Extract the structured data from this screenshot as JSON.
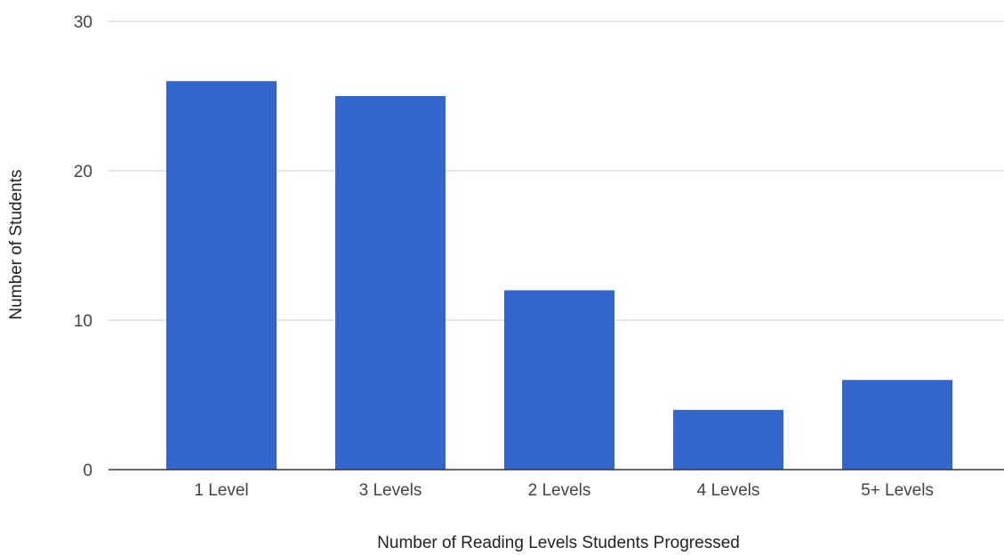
{
  "chart_data": {
    "type": "bar",
    "categories": [
      "1 Level",
      "3 Levels",
      "2 Levels",
      "4 Levels",
      "5+ Levels"
    ],
    "values": [
      26,
      25,
      12,
      4,
      6
    ],
    "title": "",
    "xlabel": "Number of Reading Levels Students Progressed",
    "ylabel": "Number of Students",
    "ylim": [
      0,
      30
    ],
    "yticks": [
      "0",
      "10",
      "20",
      "30"
    ],
    "grid": true,
    "legend": "none",
    "bar_color": "#3366CC",
    "gridline_color": "#CCCCCC",
    "baseline_color": "#333333"
  }
}
